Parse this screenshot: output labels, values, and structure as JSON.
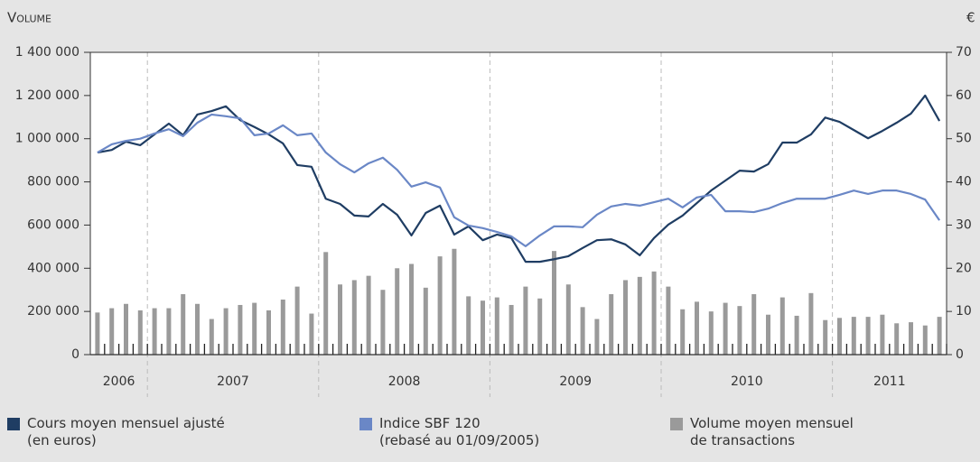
{
  "chart_data": {
    "type": "combo",
    "y_label": "Volume",
    "y2_label": "€",
    "categories": [
      null,
      null,
      null,
      null,
      null,
      null,
      null,
      null,
      null,
      null,
      null,
      null,
      null,
      null,
      null,
      null,
      null,
      null,
      null,
      null,
      null,
      null,
      null,
      null,
      null,
      null,
      null,
      null,
      null,
      null,
      null,
      null,
      null,
      null,
      null,
      null,
      null,
      null,
      null,
      null,
      null,
      null,
      null,
      null,
      null,
      null,
      null,
      null,
      null,
      null,
      null,
      null,
      null,
      null,
      null,
      null,
      null,
      null,
      null,
      null
    ],
    "x_groups": [
      {
        "label": "2006",
        "count": 4
      },
      {
        "label": "2007",
        "count": 12
      },
      {
        "label": "2008",
        "count": 12
      },
      {
        "label": "2009",
        "count": 12
      },
      {
        "label": "2010",
        "count": 12
      },
      {
        "label": "2011",
        "count": 8
      }
    ],
    "ylim": [
      0,
      1400000
    ],
    "yticks": [
      0,
      {
        "value": 200000,
        "label": "200 000"
      },
      {
        "value": 400000,
        "label": "400 000"
      },
      {
        "value": 600000,
        "label": "600 000"
      },
      {
        "value": 800000,
        "label": "800 000"
      },
      {
        "value": 1000000,
        "label": "1 000 000"
      },
      {
        "value": 1200000,
        "label": "1 200 000"
      },
      {
        "value": 1400000,
        "label": "1 400 000"
      }
    ],
    "y2lim": [
      0,
      70
    ],
    "y2ticks": [
      0,
      10,
      20,
      30,
      40,
      50,
      60,
      70
    ],
    "series": [
      {
        "name": "Cours moyen mensuel ajusté\n(en euros)",
        "kind": "line",
        "axis": "y2",
        "color": "#1f3d63",
        "values": [
          46.8,
          47.4,
          49.3,
          48.5,
          51,
          53.5,
          50.8,
          55.6,
          56.4,
          57.5,
          54.3,
          52.7,
          51,
          48.9,
          43.9,
          43.5,
          36.1,
          34.9,
          32.2,
          32,
          34.9,
          32.4,
          27.6,
          32.8,
          34.5,
          27.8,
          29.7,
          26.5,
          27.8,
          27,
          21.5,
          21.5,
          22.1,
          22.8,
          24.7,
          26.5,
          26.7,
          25.5,
          23,
          27,
          30.1,
          32.2,
          35.1,
          38,
          40.3,
          42.6,
          42.4,
          44.1,
          49.1,
          49.1,
          51,
          54.9,
          53.9,
          52,
          50.1,
          51.8,
          53.7,
          55.8,
          60,
          54.1
        ]
      },
      {
        "name": "Indice SBF 120\n(rebasé au 01/09/2005)",
        "kind": "line",
        "axis": "y2",
        "color": "#6a87c6",
        "values": [
          46.8,
          48.7,
          49.5,
          50,
          51.2,
          52.2,
          50.6,
          53.7,
          55.6,
          55.2,
          54.7,
          50.8,
          51.2,
          53.1,
          50.8,
          51.2,
          46.8,
          44.1,
          42.2,
          44.3,
          45.6,
          42.8,
          38.9,
          39.9,
          38.7,
          31.8,
          29.9,
          29.3,
          28.4,
          27.4,
          25.1,
          27.6,
          29.7,
          29.7,
          29.5,
          32.4,
          34.3,
          34.9,
          34.5,
          35.3,
          36.1,
          34.1,
          36.4,
          37,
          33.2,
          33.2,
          33,
          33.8,
          35.1,
          36.1,
          36.1,
          36.1,
          37,
          38,
          37.2,
          38,
          38,
          37.2,
          35.9,
          31.1
        ]
      },
      {
        "name": "Volume moyen mensuel\nde transactions",
        "kind": "bar",
        "color": "#9a9a9a",
        "values": [
          195000,
          215000,
          235000,
          205000,
          215000,
          215000,
          280000,
          235000,
          165000,
          215000,
          230000,
          240000,
          205000,
          255000,
          315000,
          190000,
          475000,
          325000,
          345000,
          365000,
          300000,
          400000,
          420000,
          310000,
          455000,
          490000,
          270000,
          250000,
          265000,
          230000,
          315000,
          260000,
          480000,
          325000,
          220000,
          165000,
          280000,
          345000,
          360000,
          385000,
          315000,
          210000,
          245000,
          200000,
          240000,
          225000,
          280000,
          185000,
          265000,
          180000,
          285000,
          160000,
          170000,
          175000,
          175000,
          185000,
          145000,
          150000,
          135000,
          175000
        ]
      }
    ]
  }
}
